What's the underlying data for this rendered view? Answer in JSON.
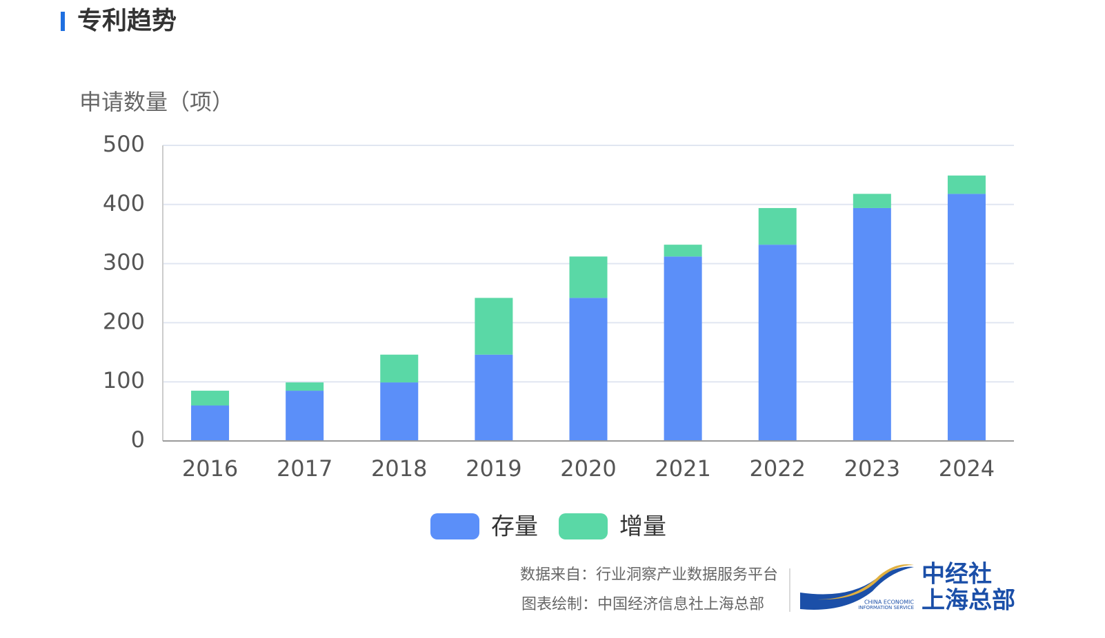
{
  "chart_data": {
    "type": "stacked_bar",
    "title": "专利趋势",
    "y_label": "申请数量（项）",
    "categories": [
      "2016",
      "2017",
      "2018",
      "2019",
      "2020",
      "2021",
      "2022",
      "2023",
      "2024"
    ],
    "series": [
      {
        "name": "存量",
        "color": "#5b8ff9",
        "values": [
          60,
          85,
          99,
          146,
          242,
          312,
          332,
          394,
          418
        ]
      },
      {
        "name": "增量",
        "color": "#5ad8a6",
        "values": [
          25,
          14,
          47,
          96,
          70,
          20,
          62,
          24,
          31
        ]
      }
    ],
    "ylim": [
      0,
      500
    ],
    "yticks": [
      0,
      100,
      200,
      300,
      400,
      500
    ],
    "grid": true
  },
  "footer": {
    "source": "数据来自：行业洞察产业数据服务平台",
    "credit": "图表绘制：中国经济信息社上海总部"
  },
  "logo": {
    "name": "中经社",
    "branch": "上海总部",
    "english_1": "CHINA ECONOMIC",
    "english_2": "INFORMATION SERVICE"
  }
}
